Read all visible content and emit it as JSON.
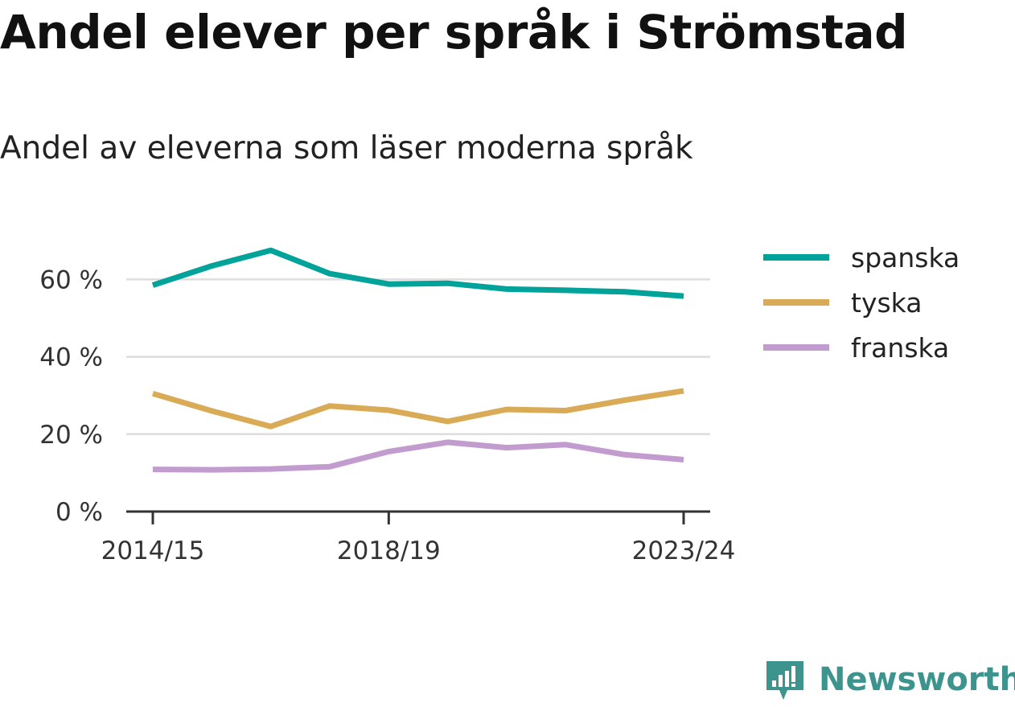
{
  "title": "Andel elever per språk i Strömstad",
  "subtitle": "Andel av eleverna som läser moderna språk",
  "brand": {
    "name": "Newsworthy",
    "color": "#3d948f",
    "icon": "bar-chart-speech-bubble-icon"
  },
  "chart_data": {
    "type": "line",
    "x": [
      "2014/15",
      "2015/16",
      "2016/17",
      "2017/18",
      "2018/19",
      "2019/20",
      "2020/21",
      "2021/22",
      "2022/23",
      "2023/24"
    ],
    "x_tick_labels": [
      "2014/15",
      "2018/19",
      "2023/24"
    ],
    "y_ticks": [
      0,
      20,
      40,
      60
    ],
    "y_tick_labels": [
      "0 %",
      "20 %",
      "40 %",
      "60 %"
    ],
    "ylim": [
      0,
      70
    ],
    "grid": "horizontal",
    "legend_position": "right",
    "series": [
      {
        "name": "spanska",
        "color": "#00a39a",
        "values": [
          58.5,
          63.5,
          67.5,
          61.5,
          58.8,
          59.0,
          57.5,
          57.2,
          56.8,
          55.7
        ]
      },
      {
        "name": "tyska",
        "color": "#d9ab56",
        "values": [
          30.5,
          26.0,
          22.0,
          27.3,
          26.2,
          23.3,
          26.4,
          26.1,
          28.8,
          31.2
        ]
      },
      {
        "name": "franska",
        "color": "#c29ccf",
        "values": [
          10.9,
          10.8,
          11.0,
          11.6,
          15.5,
          17.9,
          16.5,
          17.3,
          14.7,
          13.4
        ]
      }
    ]
  }
}
